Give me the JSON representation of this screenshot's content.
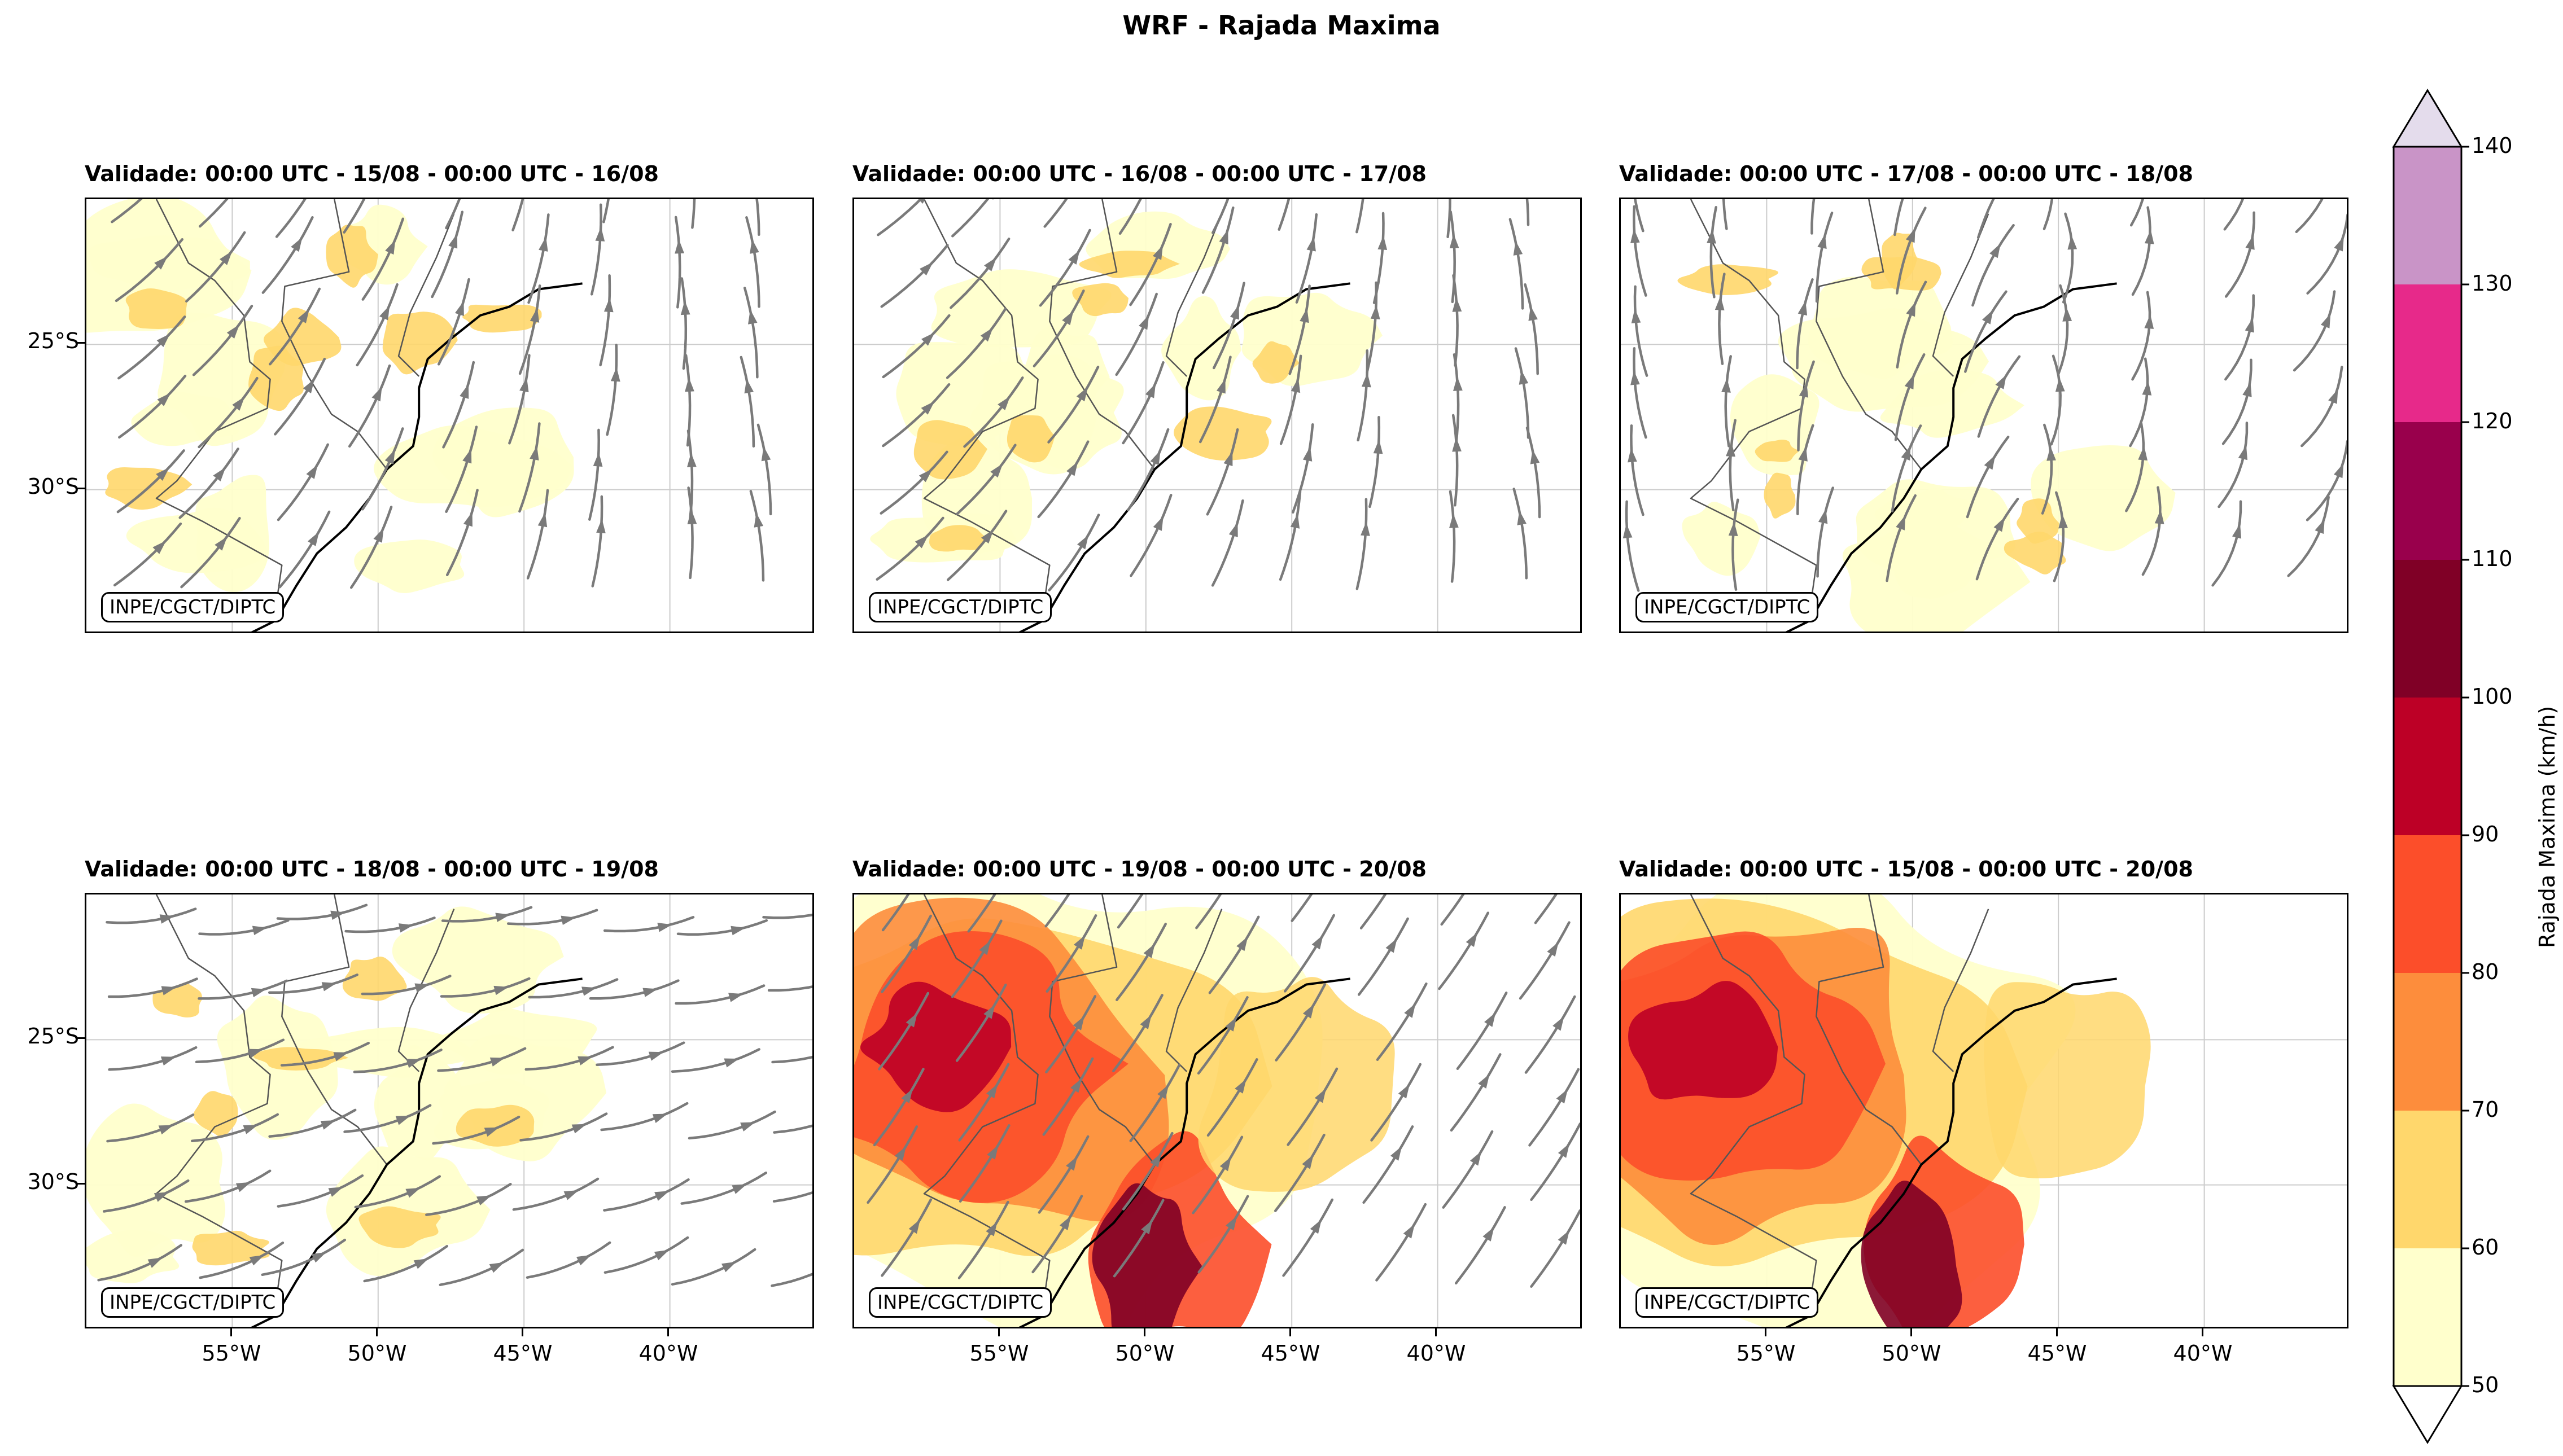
{
  "title": "WRF - Rajada Maxima",
  "credit": "INPE/CGCT/DIPTC",
  "panels": [
    {
      "title": "Validade: 00:00 UTC - 15/08 - 00:00 UTC - 16/08",
      "intensity": 1,
      "pattern": "ne_flow"
    },
    {
      "title": "Validade: 00:00 UTC - 16/08 - 00:00 UTC - 17/08",
      "intensity": 1,
      "pattern": "ne_flow"
    },
    {
      "title": "Validade: 00:00 UTC - 17/08 - 00:00 UTC - 18/08",
      "intensity": 1,
      "pattern": "cyclone"
    },
    {
      "title": "Validade: 00:00 UTC - 18/08 - 00:00 UTC - 19/08",
      "intensity": 1,
      "pattern": "trough"
    },
    {
      "title": "Validade: 00:00 UTC - 19/08 - 00:00 UTC - 20/08",
      "intensity": 3,
      "pattern": "frontal"
    },
    {
      "title": "Validade: 00:00 UTC - 15/08 - 00:00 UTC - 20/08",
      "intensity": 3,
      "pattern": "none"
    }
  ],
  "y_ticks": [
    "25°S",
    "30°S"
  ],
  "x_ticks": [
    "55°W",
    "50°W",
    "45°W",
    "40°W"
  ],
  "colorbar": {
    "label": "Rajada Maxima (km/h)",
    "levels": [
      "50",
      "60",
      "70",
      "80",
      "90",
      "100",
      "110",
      "120",
      "130",
      "140"
    ],
    "colors": [
      "#ffffcc",
      "#ffd76c",
      "#fd8d3c",
      "#fc4e2a",
      "#bd0026",
      "#800026",
      "#99004c",
      "#e7298a",
      "#c994c7",
      "#e0daeb"
    ],
    "under_color": "#ffffff",
    "over_color": "#e4dcec"
  },
  "map_colors": {
    "streamline": "#7a7a7a",
    "coast": "#000000",
    "border": "#555555",
    "grid": "#cccccc"
  }
}
